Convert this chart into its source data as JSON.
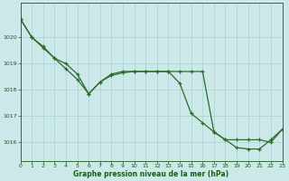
{
  "series1": [
    1020.7,
    1020.0,
    1019.6,
    1019.2,
    1018.8,
    1018.4,
    1017.85,
    1018.3,
    1018.55,
    1018.65,
    1018.7,
    1018.7,
    1018.7,
    1018.7,
    1018.25,
    1017.1,
    1016.75,
    1016.4,
    1016.1,
    1015.8,
    1015.75,
    1015.75,
    1016.1,
    1016.5
  ],
  "series2": [
    1020.7,
    1020.0,
    1019.65,
    1019.2,
    1019.0,
    1018.6,
    1017.85,
    1018.3,
    1018.6,
    1018.7,
    1018.7,
    1018.7,
    1018.7,
    1018.7,
    1018.7,
    1018.7,
    1018.7,
    1016.4,
    1016.1,
    1016.1,
    1016.1,
    1016.1,
    1016.0,
    1016.5
  ],
  "xlabel": "Graphe pression niveau de la mer (hPa)",
  "yticks": [
    1016,
    1017,
    1018,
    1019,
    1020
  ],
  "xtick_labels": [
    "0",
    "1",
    "2",
    "3",
    "4",
    "5",
    "6",
    "7",
    "8",
    "9",
    "10",
    "11",
    "12",
    "13",
    "14",
    "15",
    "16",
    "17",
    "18",
    "19",
    "20",
    "21",
    "22",
    "23"
  ],
  "ylim": [
    1015.3,
    1021.3
  ],
  "xlim": [
    0,
    23
  ],
  "line_color": "#2d6a2d",
  "bg_color": "#cce8e8",
  "grid_color": "#aad0d0",
  "xlabel_color": "#1a5c1a",
  "tick_color": "#1a5c1a"
}
